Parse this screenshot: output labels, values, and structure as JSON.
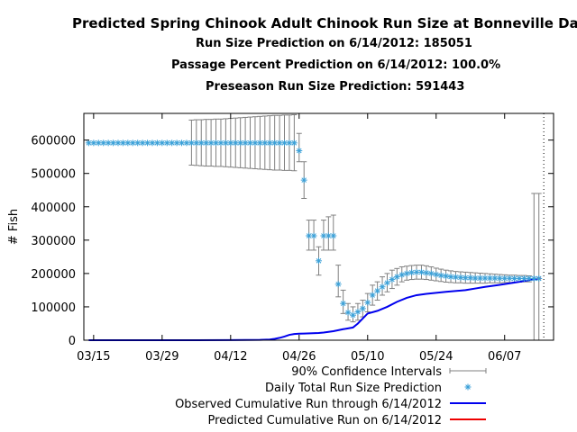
{
  "titles": {
    "main": "Predicted Spring Chinook Adult Chinook Run Size at Bonneville Dam",
    "line1": "Run Size Prediction on 6/14/2012: 185051",
    "line2": "Passage Percent Prediction on 6/14/2012: 100.0%",
    "line3": "Preseason Run Size Prediction: 591443"
  },
  "chart_data": {
    "type": "line",
    "ylabel": "# Fish",
    "xlabel": "",
    "ylim": [
      0,
      680000
    ],
    "xlim": [
      "2012-03-13",
      "2012-06-17"
    ],
    "grid": false,
    "legend_position": "bottom-right",
    "y_ticks": [
      0,
      100000,
      200000,
      300000,
      400000,
      500000,
      600000
    ],
    "y_tick_labels": [
      "0",
      "100000",
      "200000",
      "300000",
      "400000",
      "500000",
      "600000"
    ],
    "x_ticks": [
      "2012-03-15",
      "2012-03-29",
      "2012-04-12",
      "2012-04-26",
      "2012-05-10",
      "2012-05-24",
      "2012-06-07"
    ],
    "x_tick_labels": [
      "03/15",
      "03/29",
      "04/12",
      "04/26",
      "05/10",
      "05/24",
      "06/07"
    ],
    "vertical_marker_date": "2012-06-15",
    "colors": {
      "prediction": "#3aa0d8",
      "ci": "#808080",
      "observed": "#0000ee",
      "predicted_cumulative": "#ee0000"
    },
    "series": [
      {
        "name": "90% Confidence Intervals",
        "style": "errorbar",
        "points": [
          {
            "x": "2012-04-04",
            "low": 525000,
            "high": 660000
          },
          {
            "x": "2012-04-05",
            "low": 524000,
            "high": 661000
          },
          {
            "x": "2012-04-06",
            "low": 523000,
            "high": 661000
          },
          {
            "x": "2012-04-07",
            "low": 522000,
            "high": 662000
          },
          {
            "x": "2012-04-08",
            "low": 522000,
            "high": 662000
          },
          {
            "x": "2012-04-09",
            "low": 521000,
            "high": 663000
          },
          {
            "x": "2012-04-10",
            "low": 521000,
            "high": 663000
          },
          {
            "x": "2012-04-11",
            "low": 520000,
            "high": 664000
          },
          {
            "x": "2012-04-12",
            "low": 519000,
            "high": 665000
          },
          {
            "x": "2012-04-13",
            "low": 518000,
            "high": 666000
          },
          {
            "x": "2012-04-14",
            "low": 517000,
            "high": 667000
          },
          {
            "x": "2012-04-15",
            "low": 516000,
            "high": 668000
          },
          {
            "x": "2012-04-16",
            "low": 515000,
            "high": 669000
          },
          {
            "x": "2012-04-17",
            "low": 514000,
            "high": 670000
          },
          {
            "x": "2012-04-18",
            "low": 513000,
            "high": 671000
          },
          {
            "x": "2012-04-19",
            "low": 512000,
            "high": 672000
          },
          {
            "x": "2012-04-20",
            "low": 511000,
            "high": 673000
          },
          {
            "x": "2012-04-21",
            "low": 510000,
            "high": 674000
          },
          {
            "x": "2012-04-22",
            "low": 510000,
            "high": 674000
          },
          {
            "x": "2012-04-23",
            "low": 509000,
            "high": 675000
          },
          {
            "x": "2012-04-24",
            "low": 509000,
            "high": 675000
          },
          {
            "x": "2012-04-25",
            "low": 508000,
            "high": 676000
          },
          {
            "x": "2012-04-26",
            "low": 535000,
            "high": 620000
          },
          {
            "x": "2012-04-27",
            "low": 425000,
            "high": 535000
          },
          {
            "x": "2012-04-28",
            "low": 270000,
            "high": 360000
          },
          {
            "x": "2012-04-29",
            "low": 270000,
            "high": 360000
          },
          {
            "x": "2012-04-30",
            "low": 195000,
            "high": 280000
          },
          {
            "x": "2012-05-01",
            "low": 270000,
            "high": 360000
          },
          {
            "x": "2012-05-02",
            "low": 270000,
            "high": 370000
          },
          {
            "x": "2012-05-03",
            "low": 270000,
            "high": 375000
          },
          {
            "x": "2012-05-04",
            "low": 130000,
            "high": 225000
          },
          {
            "x": "2012-05-05",
            "low": 80000,
            "high": 150000
          },
          {
            "x": "2012-05-06",
            "low": 60000,
            "high": 110000
          },
          {
            "x": "2012-05-07",
            "low": 55000,
            "high": 100000
          },
          {
            "x": "2012-05-08",
            "low": 60000,
            "high": 110000
          },
          {
            "x": "2012-05-09",
            "low": 70000,
            "high": 120000
          },
          {
            "x": "2012-05-10",
            "low": 85000,
            "high": 140000
          },
          {
            "x": "2012-05-11",
            "low": 105000,
            "high": 165000
          },
          {
            "x": "2012-05-12",
            "low": 120000,
            "high": 175000
          },
          {
            "x": "2012-05-13",
            "low": 135000,
            "high": 190000
          },
          {
            "x": "2012-05-14",
            "low": 145000,
            "high": 200000
          },
          {
            "x": "2012-05-15",
            "low": 155000,
            "high": 210000
          },
          {
            "x": "2012-05-16",
            "low": 165000,
            "high": 215000
          },
          {
            "x": "2012-05-17",
            "low": 175000,
            "high": 220000
          },
          {
            "x": "2012-05-18",
            "low": 180000,
            "high": 222000
          },
          {
            "x": "2012-05-19",
            "low": 182000,
            "high": 224000
          },
          {
            "x": "2012-05-20",
            "low": 183000,
            "high": 225000
          },
          {
            "x": "2012-05-21",
            "low": 183000,
            "high": 225000
          },
          {
            "x": "2012-05-22",
            "low": 182000,
            "high": 223000
          },
          {
            "x": "2012-05-23",
            "low": 180000,
            "high": 220000
          },
          {
            "x": "2012-05-24",
            "low": 178000,
            "high": 216000
          },
          {
            "x": "2012-05-25",
            "low": 176000,
            "high": 213000
          },
          {
            "x": "2012-05-26",
            "low": 174000,
            "high": 210000
          },
          {
            "x": "2012-05-27",
            "low": 173000,
            "high": 208000
          },
          {
            "x": "2012-05-28",
            "low": 172000,
            "high": 206000
          },
          {
            "x": "2012-05-29",
            "low": 172000,
            "high": 205000
          },
          {
            "x": "2012-05-30",
            "low": 171000,
            "high": 204000
          },
          {
            "x": "2012-05-31",
            "low": 171000,
            "high": 203000
          },
          {
            "x": "2012-06-01",
            "low": 171000,
            "high": 202000
          },
          {
            "x": "2012-06-02",
            "low": 171000,
            "high": 201000
          },
          {
            "x": "2012-06-03",
            "low": 171000,
            "high": 200000
          },
          {
            "x": "2012-06-04",
            "low": 172000,
            "high": 199000
          },
          {
            "x": "2012-06-05",
            "low": 172000,
            "high": 198000
          },
          {
            "x": "2012-06-06",
            "low": 172000,
            "high": 197000
          },
          {
            "x": "2012-06-07",
            "low": 173000,
            "high": 196000
          },
          {
            "x": "2012-06-08",
            "low": 173000,
            "high": 195000
          },
          {
            "x": "2012-06-09",
            "low": 174000,
            "high": 195000
          },
          {
            "x": "2012-06-10",
            "low": 174000,
            "high": 194000
          },
          {
            "x": "2012-06-11",
            "low": 175000,
            "high": 194000
          },
          {
            "x": "2012-06-12",
            "low": 175000,
            "high": 193000
          },
          {
            "x": "2012-06-13",
            "low": 0,
            "high": 440000
          },
          {
            "x": "2012-06-14",
            "low": 0,
            "high": 440000
          }
        ]
      },
      {
        "name": "Daily Total Run Size Prediction",
        "style": "points",
        "x": [
          "2012-03-14",
          "2012-03-15",
          "2012-03-16",
          "2012-03-17",
          "2012-03-18",
          "2012-03-19",
          "2012-03-20",
          "2012-03-21",
          "2012-03-22",
          "2012-03-23",
          "2012-03-24",
          "2012-03-25",
          "2012-03-26",
          "2012-03-27",
          "2012-03-28",
          "2012-03-29",
          "2012-03-30",
          "2012-03-31",
          "2012-04-01",
          "2012-04-02",
          "2012-04-03",
          "2012-04-04",
          "2012-04-05",
          "2012-04-06",
          "2012-04-07",
          "2012-04-08",
          "2012-04-09",
          "2012-04-10",
          "2012-04-11",
          "2012-04-12",
          "2012-04-13",
          "2012-04-14",
          "2012-04-15",
          "2012-04-16",
          "2012-04-17",
          "2012-04-18",
          "2012-04-19",
          "2012-04-20",
          "2012-04-21",
          "2012-04-22",
          "2012-04-23",
          "2012-04-24",
          "2012-04-25",
          "2012-04-26",
          "2012-04-27",
          "2012-04-28",
          "2012-04-29",
          "2012-04-30",
          "2012-05-01",
          "2012-05-02",
          "2012-05-03",
          "2012-05-04",
          "2012-05-05",
          "2012-05-06",
          "2012-05-07",
          "2012-05-08",
          "2012-05-09",
          "2012-05-10",
          "2012-05-11",
          "2012-05-12",
          "2012-05-13",
          "2012-05-14",
          "2012-05-15",
          "2012-05-16",
          "2012-05-17",
          "2012-05-18",
          "2012-05-19",
          "2012-05-20",
          "2012-05-21",
          "2012-05-22",
          "2012-05-23",
          "2012-05-24",
          "2012-05-25",
          "2012-05-26",
          "2012-05-27",
          "2012-05-28",
          "2012-05-29",
          "2012-05-30",
          "2012-05-31",
          "2012-06-01",
          "2012-06-02",
          "2012-06-03",
          "2012-06-04",
          "2012-06-05",
          "2012-06-06",
          "2012-06-07",
          "2012-06-08",
          "2012-06-09",
          "2012-06-10",
          "2012-06-11",
          "2012-06-12",
          "2012-06-13",
          "2012-06-14"
        ],
        "values": [
          591443,
          591443,
          591443,
          591443,
          591443,
          591443,
          591443,
          591443,
          591443,
          591443,
          591443,
          591443,
          591443,
          591443,
          591443,
          591443,
          591443,
          591443,
          591443,
          591443,
          591443,
          591443,
          591443,
          591443,
          591443,
          591443,
          591443,
          591443,
          591443,
          591443,
          591443,
          591443,
          591443,
          591443,
          591443,
          591443,
          591443,
          591443,
          591443,
          591443,
          591443,
          591443,
          591443,
          568000,
          480000,
          313000,
          313000,
          238000,
          313000,
          313000,
          313000,
          168000,
          110000,
          83000,
          75000,
          85000,
          95000,
          113000,
          135000,
          148000,
          160000,
          172000,
          182000,
          190000,
          196000,
          200000,
          203000,
          204000,
          204000,
          202000,
          200000,
          197000,
          194000,
          192000,
          190000,
          189000,
          188000,
          187000,
          187000,
          186000,
          186000,
          186000,
          186000,
          186000,
          185500,
          185500,
          185500,
          185000,
          185000,
          185000,
          185000,
          185000,
          185051
        ]
      },
      {
        "name": "Observed Cumulative Run through 6/14/2012",
        "style": "line",
        "x": [
          "2012-03-14",
          "2012-04-05",
          "2012-04-12",
          "2012-04-15",
          "2012-04-18",
          "2012-04-20",
          "2012-04-21",
          "2012-04-22",
          "2012-04-23",
          "2012-04-24",
          "2012-04-25",
          "2012-04-26",
          "2012-04-27",
          "2012-04-30",
          "2012-05-01",
          "2012-05-03",
          "2012-05-05",
          "2012-05-07",
          "2012-05-08",
          "2012-05-09",
          "2012-05-10",
          "2012-05-12",
          "2012-05-14",
          "2012-05-16",
          "2012-05-18",
          "2012-05-20",
          "2012-05-22",
          "2012-05-26",
          "2012-05-30",
          "2012-06-01",
          "2012-06-03",
          "2012-06-06",
          "2012-06-10",
          "2012-06-14"
        ],
        "values": [
          0,
          0,
          200,
          500,
          1000,
          2000,
          4000,
          7000,
          11000,
          16000,
          18500,
          19500,
          20000,
          21500,
          23000,
          27000,
          33000,
          38000,
          50000,
          65000,
          80000,
          88000,
          100000,
          115000,
          127000,
          135000,
          139000,
          145000,
          150000,
          155000,
          160000,
          166000,
          175000,
          185051
        ]
      },
      {
        "name": "Predicted Cumulative Run on 6/14/2012",
        "style": "line",
        "x": [
          "2012-06-14"
        ],
        "values": [
          185051
        ]
      }
    ]
  }
}
